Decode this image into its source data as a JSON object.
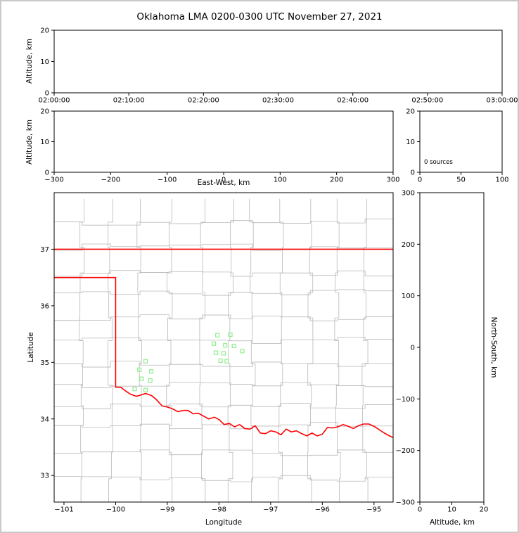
{
  "title": "Oklahoma LMA 0200-0300 UTC November 27, 2021",
  "colors": {
    "background": "#ffffff",
    "figure_border": "#c9c9c9",
    "spines": "#000000",
    "state_border": "#ff0000",
    "county_lines": "#b8b8b8",
    "station_marker": "#90ee90"
  },
  "counties": {
    "seed": 11,
    "approx_cell_size_deg": [
      0.54,
      0.43
    ]
  },
  "chart_data": [
    {
      "id": "time_height_panel",
      "type": "scatter",
      "xlabel": "",
      "ylabel": "Altitude, km",
      "xlim": [
        0,
        60
      ],
      "ylim": [
        0,
        20
      ],
      "x_ticks": [
        {
          "v": 0,
          "label": "02:00:00"
        },
        {
          "v": 10,
          "label": "02:10:00"
        },
        {
          "v": 20,
          "label": "02:20:00"
        },
        {
          "v": 30,
          "label": "02:30:00"
        },
        {
          "v": 40,
          "label": "02:40:00"
        },
        {
          "v": 50,
          "label": "02:50:00"
        },
        {
          "v": 60,
          "label": "03:00:00"
        }
      ],
      "y_ticks": [
        {
          "v": 0,
          "label": "0"
        },
        {
          "v": 10,
          "label": "10"
        },
        {
          "v": 20,
          "label": "20"
        }
      ],
      "points": []
    },
    {
      "id": "ew_height_panel",
      "type": "scatter",
      "xlabel": "East-West, km",
      "ylabel": "Altitude, km",
      "xlim": [
        -300,
        300
      ],
      "ylim": [
        0,
        20
      ],
      "x_ticks": [
        {
          "v": -300,
          "label": "−300"
        },
        {
          "v": -200,
          "label": "−200"
        },
        {
          "v": -100,
          "label": "−100"
        },
        {
          "v": 0,
          "label": "0"
        },
        {
          "v": 100,
          "label": "100"
        },
        {
          "v": 200,
          "label": "200"
        },
        {
          "v": 300,
          "label": "300"
        }
      ],
      "y_ticks": [
        {
          "v": 0,
          "label": "0"
        },
        {
          "v": 10,
          "label": "10"
        },
        {
          "v": 20,
          "label": "20"
        }
      ],
      "points": []
    },
    {
      "id": "source_histogram_panel",
      "type": "line",
      "xlabel": "",
      "ylabel": "",
      "xlim": [
        0,
        100
      ],
      "ylim": [
        0,
        20
      ],
      "x_ticks": [
        {
          "v": 0,
          "label": "0"
        },
        {
          "v": 50,
          "label": "50"
        },
        {
          "v": 100,
          "label": "100"
        }
      ],
      "y_ticks": [
        {
          "v": 0,
          "label": "0"
        },
        {
          "v": 10,
          "label": "10"
        },
        {
          "v": 20,
          "label": "20"
        }
      ],
      "annotation": "0 sources",
      "points": []
    },
    {
      "id": "plan_view_map",
      "type": "scatter",
      "xlabel": "Longitude",
      "ylabel": "Latitude",
      "xlim": [
        -101.19,
        -94.63
      ],
      "ylim": [
        32.53,
        38.0
      ],
      "x_ticks": [
        {
          "v": -101,
          "label": "−101"
        },
        {
          "v": -100,
          "label": "−100"
        },
        {
          "v": -99,
          "label": "−99"
        },
        {
          "v": -98,
          "label": "−98"
        },
        {
          "v": -97,
          "label": "−97"
        },
        {
          "v": -96,
          "label": "−96"
        },
        {
          "v": -95,
          "label": "−95"
        }
      ],
      "y_ticks": [
        {
          "v": 33,
          "label": "33"
        },
        {
          "v": 34,
          "label": "34"
        },
        {
          "v": 35,
          "label": "35"
        },
        {
          "v": 36,
          "label": "36"
        },
        {
          "v": 37,
          "label": "37"
        }
      ],
      "stations": [
        {
          "lon": -99.42,
          "lat": 35.02
        },
        {
          "lon": -99.54,
          "lat": 34.87
        },
        {
          "lon": -99.31,
          "lat": 34.84
        },
        {
          "lon": -99.5,
          "lat": 34.71
        },
        {
          "lon": -99.33,
          "lat": 34.68
        },
        {
          "lon": -99.63,
          "lat": 34.53
        },
        {
          "lon": -99.42,
          "lat": 34.51
        },
        {
          "lon": -98.03,
          "lat": 35.48
        },
        {
          "lon": -97.78,
          "lat": 35.49
        },
        {
          "lon": -98.1,
          "lat": 35.33
        },
        {
          "lon": -97.88,
          "lat": 35.3
        },
        {
          "lon": -97.71,
          "lat": 35.29
        },
        {
          "lon": -97.55,
          "lat": 35.2
        },
        {
          "lon": -98.06,
          "lat": 35.17
        },
        {
          "lon": -97.91,
          "lat": 35.16
        },
        {
          "lon": -97.97,
          "lat": 35.03
        },
        {
          "lon": -97.85,
          "lat": 35.02
        }
      ],
      "state_border": [
        [
          [
            -101.19,
            37.0
          ],
          [
            -94.63,
            37.0
          ]
        ],
        [
          [
            -101.19,
            36.5
          ],
          [
            -100.0,
            36.5
          ],
          [
            -100.0,
            34.56
          ],
          [
            -99.9,
            34.56
          ],
          [
            -99.8,
            34.49
          ],
          [
            -99.72,
            34.44
          ],
          [
            -99.6,
            34.4
          ],
          [
            -99.52,
            34.42
          ],
          [
            -99.42,
            34.45
          ],
          [
            -99.3,
            34.41
          ],
          [
            -99.21,
            34.34
          ],
          [
            -99.1,
            34.23
          ],
          [
            -99.0,
            34.21
          ],
          [
            -98.9,
            34.18
          ],
          [
            -98.8,
            34.13
          ],
          [
            -98.68,
            34.15
          ],
          [
            -98.6,
            34.15
          ],
          [
            -98.5,
            34.09
          ],
          [
            -98.4,
            34.1
          ],
          [
            -98.3,
            34.05
          ],
          [
            -98.2,
            34.0
          ],
          [
            -98.09,
            34.03
          ],
          [
            -98.0,
            33.99
          ],
          [
            -97.9,
            33.9
          ],
          [
            -97.8,
            33.92
          ],
          [
            -97.7,
            33.86
          ],
          [
            -97.6,
            33.9
          ],
          [
            -97.5,
            33.83
          ],
          [
            -97.4,
            33.82
          ],
          [
            -97.3,
            33.88
          ],
          [
            -97.2,
            33.75
          ],
          [
            -97.1,
            33.74
          ],
          [
            -97.0,
            33.79
          ],
          [
            -96.9,
            33.77
          ],
          [
            -96.8,
            33.72
          ],
          [
            -96.7,
            33.82
          ],
          [
            -96.6,
            33.77
          ],
          [
            -96.5,
            33.79
          ],
          [
            -96.4,
            33.74
          ],
          [
            -96.3,
            33.7
          ],
          [
            -96.2,
            33.75
          ],
          [
            -96.1,
            33.7
          ],
          [
            -96.0,
            33.73
          ],
          [
            -95.9,
            33.85
          ],
          [
            -95.8,
            33.84
          ],
          [
            -95.7,
            33.86
          ],
          [
            -95.6,
            33.9
          ],
          [
            -95.5,
            33.87
          ],
          [
            -95.4,
            33.83
          ],
          [
            -95.3,
            33.88
          ],
          [
            -95.2,
            33.91
          ],
          [
            -95.1,
            33.91
          ],
          [
            -95.0,
            33.87
          ],
          [
            -94.9,
            33.81
          ],
          [
            -94.8,
            33.75
          ],
          [
            -94.7,
            33.7
          ],
          [
            -94.63,
            33.67
          ]
        ]
      ],
      "points": []
    },
    {
      "id": "ns_height_panel",
      "type": "scatter",
      "xlabel": "Altitude, km",
      "ylabel": "North-South, km",
      "xlim": [
        0,
        20
      ],
      "ylim": [
        -300,
        300
      ],
      "x_ticks": [
        {
          "v": 0,
          "label": "0"
        },
        {
          "v": 10,
          "label": "10"
        },
        {
          "v": 20,
          "label": "20"
        }
      ],
      "y_ticks": [
        {
          "v": -300,
          "label": "−300"
        },
        {
          "v": -200,
          "label": "−200"
        },
        {
          "v": -100,
          "label": "−100"
        },
        {
          "v": 0,
          "label": "0"
        },
        {
          "v": 100,
          "label": "100"
        },
        {
          "v": 200,
          "label": "200"
        },
        {
          "v": 300,
          "label": "300"
        }
      ],
      "points": []
    }
  ]
}
